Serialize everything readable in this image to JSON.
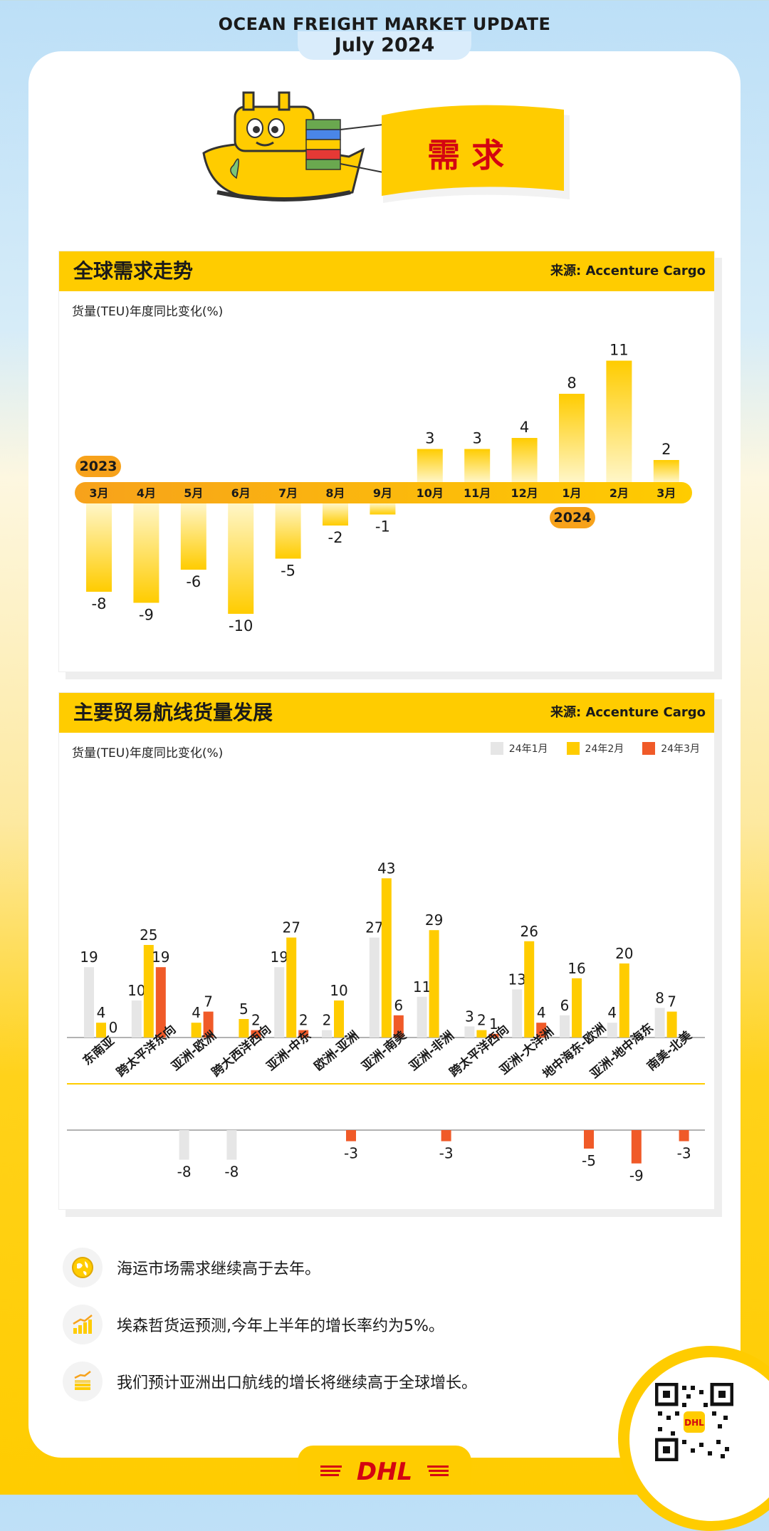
{
  "header": {
    "title": "OCEAN FREIGHT MARKET UPDATE",
    "subtitle": "July 2024"
  },
  "banner": {
    "label": "需 求"
  },
  "colors": {
    "brand_yellow": "#ffcc00",
    "brand_red": "#d40511",
    "bar_gray": "#e6e6e6",
    "bar_orange": "#f05a28",
    "bar_yellow": "#ffcc00"
  },
  "panel1": {
    "title": "全球需求走势",
    "source": "来源: Accenture Cargo",
    "ylabel": "货量(TEU)年度同比变化(%)",
    "year_start": "2023",
    "year_end": "2024"
  },
  "panel2": {
    "title": "主要贸易航线货量发展",
    "source": "来源: Accenture Cargo",
    "ylabel": "货量(TEU)年度同比变化(%)",
    "legend": [
      "24年1月",
      "24年2月",
      "24年3月"
    ]
  },
  "chart_data": [
    {
      "type": "bar",
      "title": "全球需求走势",
      "ylabel": "货量(TEU)年度同比变化(%)",
      "categories": [
        "3月",
        "4月",
        "5月",
        "6月",
        "7月",
        "8月",
        "9月",
        "10月",
        "11月",
        "12月",
        "1月",
        "2月",
        "3月"
      ],
      "values": [
        -8,
        -9,
        -6,
        -10,
        -5,
        -2,
        -1,
        3,
        3,
        4,
        8,
        11,
        2
      ],
      "grid": false
    },
    {
      "type": "bar",
      "title": "主要贸易航线货量发展",
      "ylabel": "货量(TEU)年度同比变化(%)",
      "categories": [
        "东南亚",
        "跨太平洋东向",
        "亚洲-欧洲",
        "跨大西洋西向",
        "亚洲-中东",
        "欧洲-亚洲",
        "亚洲-南美",
        "亚洲-非洲",
        "跨太平洋西向",
        "亚洲-大洋洲",
        "地中海东-欧洲",
        "亚洲-地中海东",
        "南美-北美"
      ],
      "series": [
        {
          "name": "24年1月",
          "color": "#e6e6e6",
          "values": [
            19,
            10,
            -8,
            -8,
            19,
            2,
            27,
            11,
            3,
            13,
            6,
            4,
            8
          ]
        },
        {
          "name": "24年2月",
          "color": "#ffcc00",
          "values": [
            4,
            25,
            4,
            5,
            27,
            10,
            43,
            29,
            2,
            26,
            16,
            20,
            7
          ]
        },
        {
          "name": "24年3月",
          "color": "#f05a28",
          "values": [
            0,
            19,
            7,
            2,
            2,
            -3,
            6,
            -3,
            1,
            4,
            -5,
            -9,
            -3
          ]
        }
      ],
      "legend": "top-right",
      "grid": false
    }
  ],
  "notes": [
    {
      "icon": "globe-icon",
      "text": "海运市场需求继续高于去年。"
    },
    {
      "icon": "growth-chart-icon",
      "text": "埃森哲货运预测,今年上半年的增长率约为5%。"
    },
    {
      "icon": "bar-growth-icon",
      "text": "我们预计亚洲出口航线的增长将继续高于全球增长。"
    }
  ],
  "footer": {
    "logo": "DHL"
  }
}
